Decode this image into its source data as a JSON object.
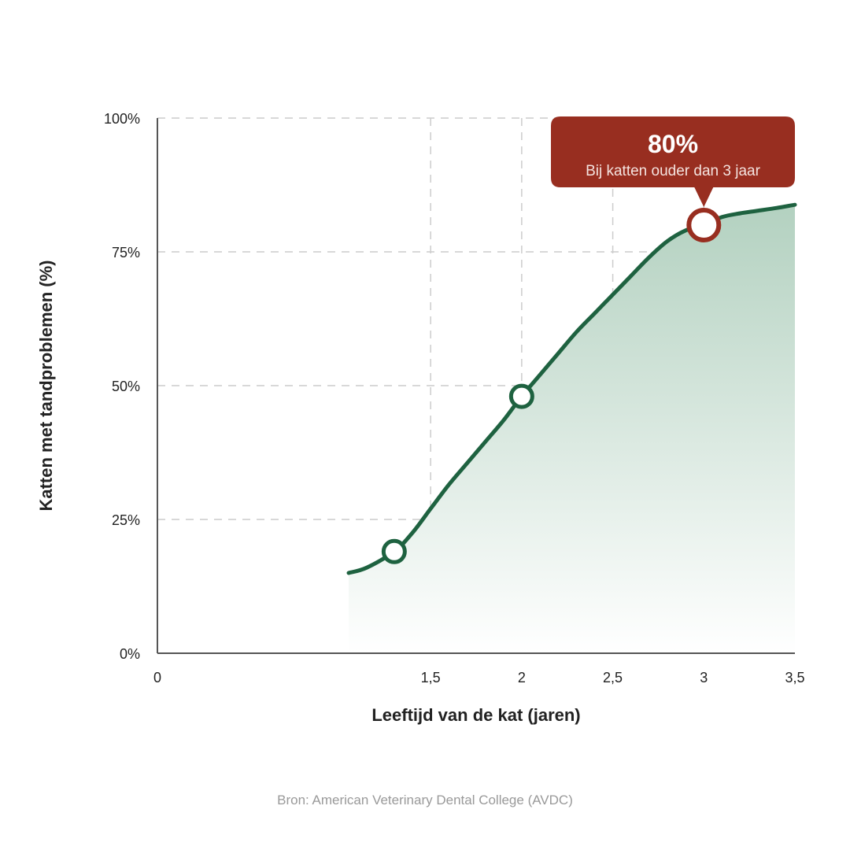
{
  "chart_data": {
    "type": "area",
    "xlabel": "Leeftijd van de kat (jaren)",
    "ylabel": "Katten met tandproblemen (%)",
    "xlim": [
      0,
      3.5
    ],
    "ylim": [
      0,
      100
    ],
    "x_ticks": [
      {
        "value": 0,
        "label": "0"
      },
      {
        "value": 1.5,
        "label": "1,5"
      },
      {
        "value": 2,
        "label": "2"
      },
      {
        "value": 2.5,
        "label": "2,5"
      },
      {
        "value": 3,
        "label": "3"
      },
      {
        "value": 3.5,
        "label": "3,5"
      }
    ],
    "y_ticks": [
      {
        "value": 0,
        "label": "0%"
      },
      {
        "value": 25,
        "label": "25%"
      },
      {
        "value": 50,
        "label": "50%"
      },
      {
        "value": 75,
        "label": "75%"
      },
      {
        "value": 100,
        "label": "100%"
      }
    ],
    "grid": true,
    "series": [
      {
        "x": [
          1.05,
          1.15,
          1.3,
          1.4,
          1.5,
          1.6,
          1.7,
          1.8,
          1.9,
          2.0,
          2.1,
          2.2,
          2.3,
          2.4,
          2.5,
          2.6,
          2.7,
          2.8,
          2.9,
          3.0,
          3.1,
          3.2,
          3.3,
          3.4,
          3.5
        ],
        "y": [
          15,
          16,
          19,
          22.5,
          27,
          31.5,
          35.5,
          39.5,
          43.5,
          48,
          52,
          56,
          60,
          63.5,
          67,
          70.5,
          74,
          77,
          79,
          80,
          81.5,
          82.2,
          82.7,
          83.2,
          83.8
        ]
      }
    ],
    "markers": [
      {
        "x": 1.3,
        "y": 19
      },
      {
        "x": 2.0,
        "y": 48
      },
      {
        "x": 3.0,
        "y": 80
      }
    ],
    "highlight": {
      "x": 3.0,
      "y": 80,
      "value_label": "80%",
      "text": "Bij katten ouder dan 3 jaar"
    },
    "colors": {
      "line": "#1e6240",
      "fill_top": "#b3d1c0",
      "fill_bottom": "#ffffff",
      "highlight": "#982e20",
      "grid": "#cccccc",
      "axis": "#555555"
    },
    "source": "Bron: American Veterinary Dental College (AVDC)"
  }
}
